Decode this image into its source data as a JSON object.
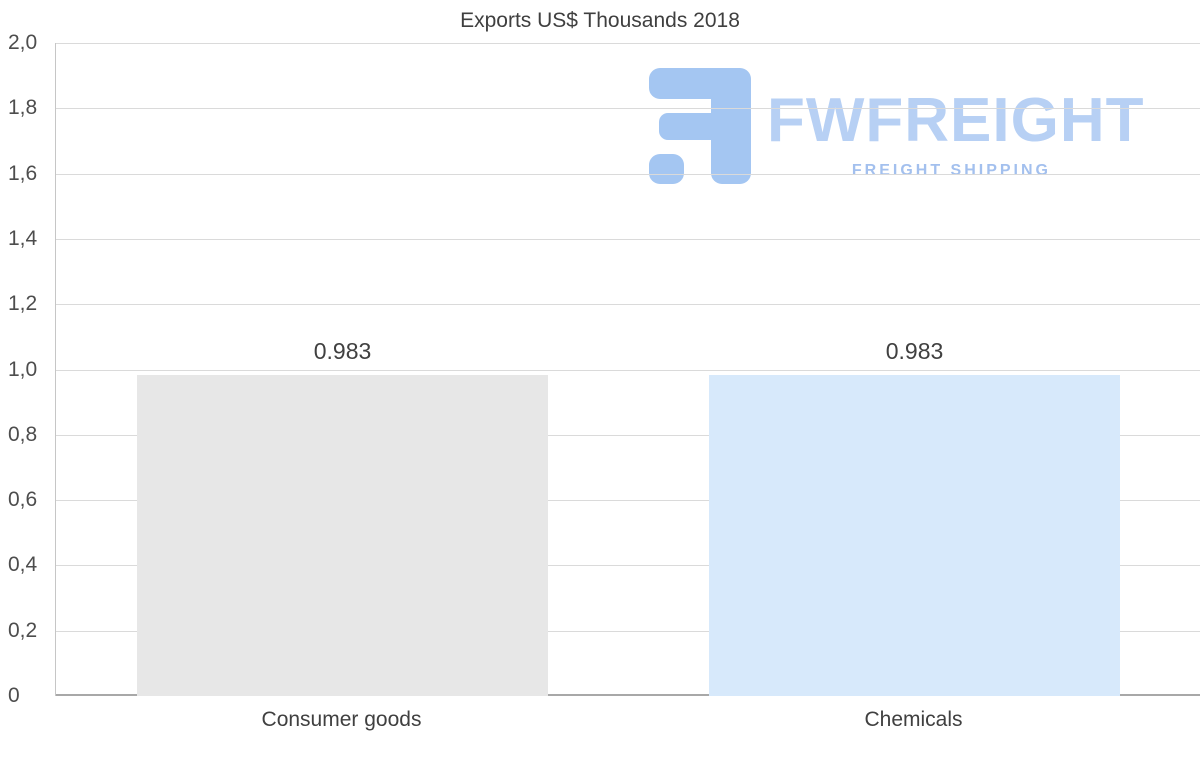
{
  "chart_data": {
    "type": "bar",
    "title": "Exports US$ Thousands 2018",
    "categories": [
      "Consumer goods",
      "Chemicals"
    ],
    "values": [
      0.983,
      0.983
    ],
    "value_labels": [
      "0.983",
      "0.983"
    ],
    "bar_colors": [
      "#e7e7e7",
      "#d7e9fb"
    ],
    "xlabel": "",
    "ylabel": "",
    "ylim": [
      0,
      2.0
    ],
    "ytick_step": 0.2,
    "ytick_labels": [
      "2,0",
      "1,8",
      "1,6",
      "1,4",
      "1,2",
      "1,0",
      "0,8",
      "0,6",
      "0,4",
      "0,2",
      "0"
    ],
    "grid": true,
    "legend": "none"
  },
  "watermark": {
    "brand": "FWFREIGHT",
    "tagline": "FREIGHT SHIPPING",
    "brand_color": "#b7d0f4",
    "logo_color": "#a4c6f2"
  }
}
